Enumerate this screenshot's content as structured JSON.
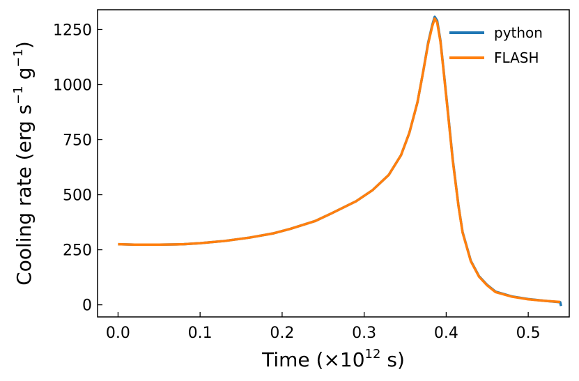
{
  "chart_data": {
    "type": "line",
    "xlabel_main": "Time (×10",
    "xlabel_exp": "12",
    "xlabel_tail": " s)",
    "ylabel_main": "Cooling rate (erg s",
    "ylabel_exp1": "−1",
    "ylabel_mid": " g",
    "ylabel_exp2": "−1",
    "ylabel_tail": ")",
    "xlim": [
      -0.025,
      0.55
    ],
    "ylim": [
      -55,
      1340
    ],
    "xticks": [
      0.0,
      0.1,
      0.2,
      0.3,
      0.4,
      0.5
    ],
    "xtick_labels": [
      "0.0",
      "0.1",
      "0.2",
      "0.3",
      "0.4",
      "0.5"
    ],
    "yticks": [
      0,
      250,
      500,
      750,
      1000,
      1250
    ],
    "ytick_labels": [
      "0",
      "250",
      "500",
      "750",
      "1000",
      "1250"
    ],
    "grid": false,
    "legend_position": "top-right",
    "series": [
      {
        "name": "python",
        "color": "#1f77b4",
        "x": [
          0.0,
          0.02,
          0.05,
          0.08,
          0.1,
          0.13,
          0.16,
          0.19,
          0.21,
          0.24,
          0.26,
          0.29,
          0.31,
          0.33,
          0.345,
          0.355,
          0.365,
          0.372,
          0.378,
          0.383,
          0.386,
          0.389,
          0.393,
          0.397,
          0.402,
          0.408,
          0.415,
          0.42,
          0.43,
          0.44,
          0.45,
          0.46,
          0.48,
          0.5,
          0.52,
          0.539,
          0.54
        ],
        "y": [
          275,
          273,
          273,
          275,
          280,
          290,
          305,
          325,
          345,
          380,
          415,
          470,
          520,
          590,
          680,
          780,
          920,
          1060,
          1190,
          1270,
          1308,
          1290,
          1200,
          1060,
          880,
          660,
          450,
          330,
          200,
          130,
          90,
          60,
          38,
          26,
          18,
          12,
          -5
        ]
      },
      {
        "name": "FLASH",
        "color": "#ff7f0e",
        "x": [
          0.0,
          0.02,
          0.05,
          0.08,
          0.1,
          0.13,
          0.16,
          0.19,
          0.21,
          0.24,
          0.26,
          0.29,
          0.31,
          0.33,
          0.345,
          0.355,
          0.365,
          0.372,
          0.378,
          0.383,
          0.386,
          0.389,
          0.393,
          0.397,
          0.402,
          0.408,
          0.415,
          0.42,
          0.43,
          0.44,
          0.45,
          0.46,
          0.48,
          0.5,
          0.52,
          0.539
        ],
        "y": [
          275,
          273,
          273,
          275,
          280,
          290,
          305,
          325,
          345,
          380,
          415,
          470,
          520,
          590,
          680,
          780,
          920,
          1060,
          1185,
          1265,
          1300,
          1282,
          1195,
          1055,
          875,
          655,
          448,
          328,
          198,
          128,
          88,
          58,
          37,
          25,
          18,
          13
        ]
      }
    ]
  }
}
